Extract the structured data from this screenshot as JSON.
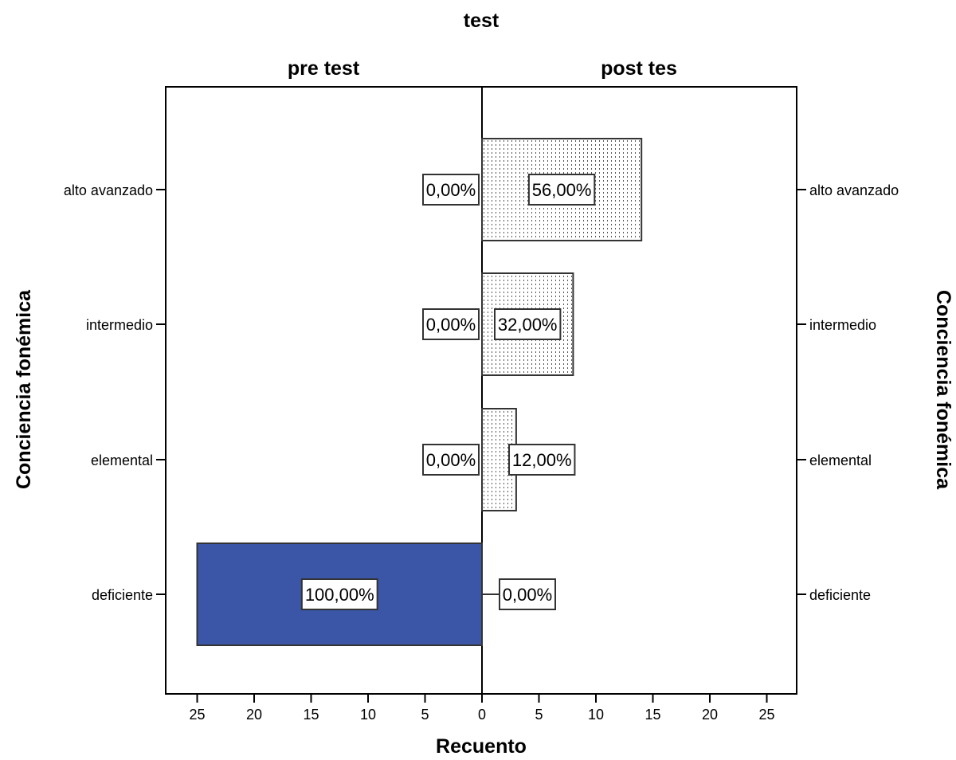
{
  "chart_data": {
    "type": "bar",
    "orientation": "horizontal",
    "layout": "population-pyramid",
    "title": "test",
    "xlabel": "Recuento",
    "ylabel": "Conciencia fonémica",
    "ylabel_right": "Conciencia fonémica",
    "categories": [
      "alto avanzado",
      "intermedio",
      "elemental",
      "deficiente"
    ],
    "xlim": [
      0,
      28
    ],
    "xticks": [
      0,
      5,
      10,
      15,
      20,
      25
    ],
    "grid": false,
    "series": [
      {
        "name": "pre test",
        "side": "left",
        "values": [
          0,
          0,
          0,
          25
        ],
        "labels": [
          "0,00%",
          "0,00%",
          "0,00%",
          "100,00%"
        ],
        "color": "#3b56a6",
        "fill": "solid"
      },
      {
        "name": "post tes",
        "side": "right",
        "values": [
          14,
          8,
          3,
          0
        ],
        "labels": [
          "56,00%",
          "32,00%",
          "12,00%",
          "0,00%"
        ],
        "color": "#ffffff",
        "fill": "dotted"
      }
    ]
  }
}
